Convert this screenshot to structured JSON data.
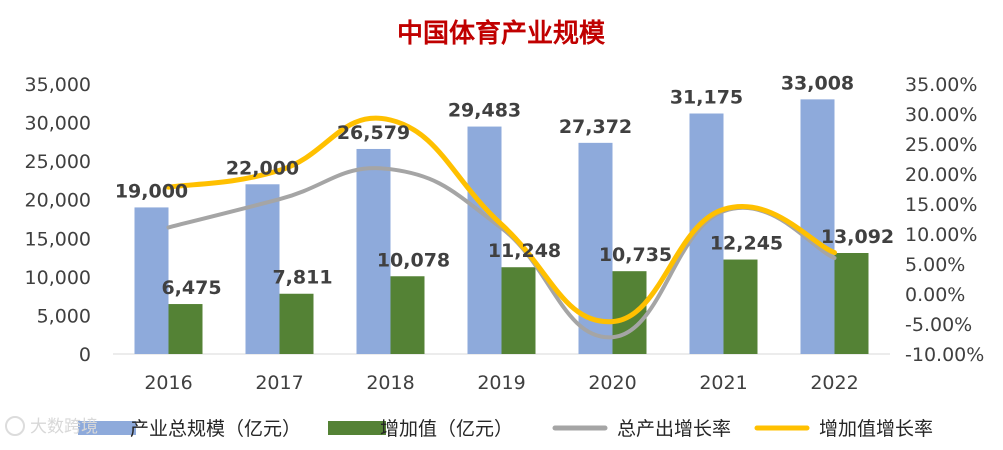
{
  "chart_data": {
    "type": "bar",
    "title": "中国体育产业规模",
    "categories": [
      "2016",
      "2017",
      "2018",
      "2019",
      "2020",
      "2021",
      "2022"
    ],
    "series": [
      {
        "name": "产业总规模（亿元）",
        "type": "bar",
        "axis": "left",
        "color": "#8eaadb",
        "values": [
          19000,
          22000,
          26579,
          29483,
          27372,
          31175,
          33008
        ],
        "labels": [
          "19,000",
          "22,000",
          "26,579",
          "29,483",
          "27,372",
          "31,175",
          "33,008"
        ]
      },
      {
        "name": "增加值（亿元）",
        "type": "bar",
        "axis": "left",
        "color": "#548235",
        "values": [
          6475,
          7811,
          10078,
          11248,
          10735,
          12245,
          13092
        ],
        "labels": [
          "6,475",
          "7,811",
          "10,078",
          "11,248",
          "10,735",
          "12,245",
          "13,092"
        ]
      },
      {
        "name": "总产出增长率",
        "type": "line",
        "axis": "right",
        "color": "#a5a5a5",
        "values": [
          11.1,
          15.8,
          20.8,
          11.0,
          -7.2,
          13.8,
          6.0
        ]
      },
      {
        "name": "增加值增长率",
        "type": "line",
        "axis": "right",
        "color": "#ffc000",
        "values": [
          17.8,
          20.6,
          29.0,
          11.6,
          -4.6,
          14.1,
          6.9
        ]
      }
    ],
    "y_left": {
      "min": 0,
      "max": 35000,
      "step": 5000,
      "ticks": [
        "0",
        "5,000",
        "10,000",
        "15,000",
        "20,000",
        "25,000",
        "30,000",
        "35,000"
      ]
    },
    "y_right": {
      "min": -10,
      "max": 35,
      "step": 5,
      "ticks": [
        "-10.00%",
        "-5.00%",
        "0.00%",
        "5.00%",
        "10.00%",
        "15.00%",
        "20.00%",
        "25.00%",
        "30.00%",
        "35.00%"
      ]
    },
    "legend_position": "bottom",
    "grid": false
  },
  "watermark": {
    "text": "大数跨境"
  },
  "colors": {
    "title": "#c00000",
    "axis_text": "#404040",
    "axis_line": "#d9d9d9"
  }
}
